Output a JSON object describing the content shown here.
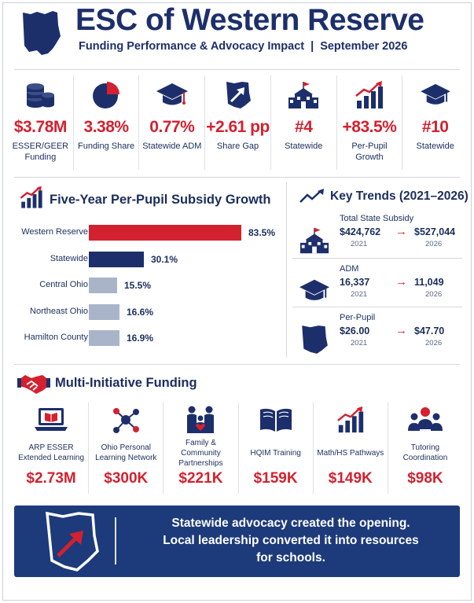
{
  "header": {
    "title": "ESC of Western Reserve",
    "subtitle_left": "Funding Performance & Advocacy Impact",
    "subtitle_sep": "|",
    "subtitle_right": "September 2026"
  },
  "kpis": [
    {
      "icon": "coin-stack-icon",
      "value": "$3.78M",
      "label": "ESSER/GEER Funding"
    },
    {
      "icon": "pie-chart-icon",
      "value": "3.38%",
      "label": "Funding Share"
    },
    {
      "icon": "graduation-cap-icon",
      "value": "0.77%",
      "label": "Statewide ADM"
    },
    {
      "icon": "ohio-arrow-icon",
      "value": "+2.61 pp",
      "label": "Share Gap"
    },
    {
      "icon": "school-building-icon",
      "value": "#4",
      "label": "Statewide"
    },
    {
      "icon": "growth-chart-icon",
      "value": "+83.5%",
      "label": "Per-Pupil Growth"
    },
    {
      "icon": "graduation-cap-icon",
      "value": "#10",
      "label": "Statewide"
    }
  ],
  "bar_section": {
    "title": "Five-Year Per-Pupil Subsidy Growth",
    "icon": "growth-chart-icon"
  },
  "chart_data": {
    "type": "bar",
    "orientation": "horizontal",
    "title": "Five-Year Per-Pupil Subsidy Growth",
    "categories": [
      "Western Reserve",
      "Statewide",
      "Central Ohio",
      "Northeast Ohio",
      "Hamilton County"
    ],
    "values": [
      83.5,
      30.1,
      15.5,
      16.6,
      16.9
    ],
    "value_labels": [
      "83.5%",
      "30.1%",
      "15.5%",
      "16.6%",
      "16.9%"
    ],
    "colors": [
      "#d3212f",
      "#1d2f6b",
      "#a9b4c8",
      "#a9b4c8",
      "#a9b4c8"
    ],
    "xlim": [
      0,
      100
    ]
  },
  "key_trends": {
    "title": "Key Trends (2021–2026)",
    "icon": "trend-line-icon",
    "items": [
      {
        "icon": "school-building-icon",
        "name": "Total State Subsidy",
        "from_value": "$424,762",
        "from_year": "2021",
        "arrow": "→",
        "to_value": "$527,044",
        "to_year": "2026"
      },
      {
        "icon": "graduation-cap-icon",
        "name": "ADM",
        "from_value": "16,337",
        "from_year": "2021",
        "arrow": "→",
        "to_value": "11,049",
        "to_year": "2026"
      },
      {
        "icon": "ohio-map-icon",
        "name": "Per-Pupil",
        "from_value": "$26.00",
        "from_year": "2021",
        "arrow": "→",
        "to_value": "$47.70",
        "to_year": "2026"
      }
    ]
  },
  "initiatives": {
    "title": "Multi-Initiative Funding",
    "icon": "handshake-icon",
    "items": [
      {
        "icon": "laptop-book-icon",
        "label": "ARP ESSER Extended Learning",
        "value": "$2.73M"
      },
      {
        "icon": "network-icon",
        "label": "Ohio Personal Learning Network",
        "value": "$300K"
      },
      {
        "icon": "family-icon",
        "label": "Family & Community Partnerships",
        "value": "$221K"
      },
      {
        "icon": "open-book-icon",
        "label": "HQIM Training",
        "value": "$159K"
      },
      {
        "icon": "growth-chart-icon",
        "label": "Math/HS Pathways",
        "value": "$149K"
      },
      {
        "icon": "people-group-icon",
        "label": "Tutoring Coordination",
        "value": "$98K"
      }
    ]
  },
  "banner": {
    "icon": "ohio-arrow-icon",
    "line1": "Statewide advocacy created the opening.",
    "line2": "Local leadership converted it into resources",
    "line3": "for schools."
  },
  "colors": {
    "navy": "#1d2f6b",
    "red": "#d3212f",
    "gray_bar": "#a9b4c8",
    "banner": "#1d3a7a"
  }
}
